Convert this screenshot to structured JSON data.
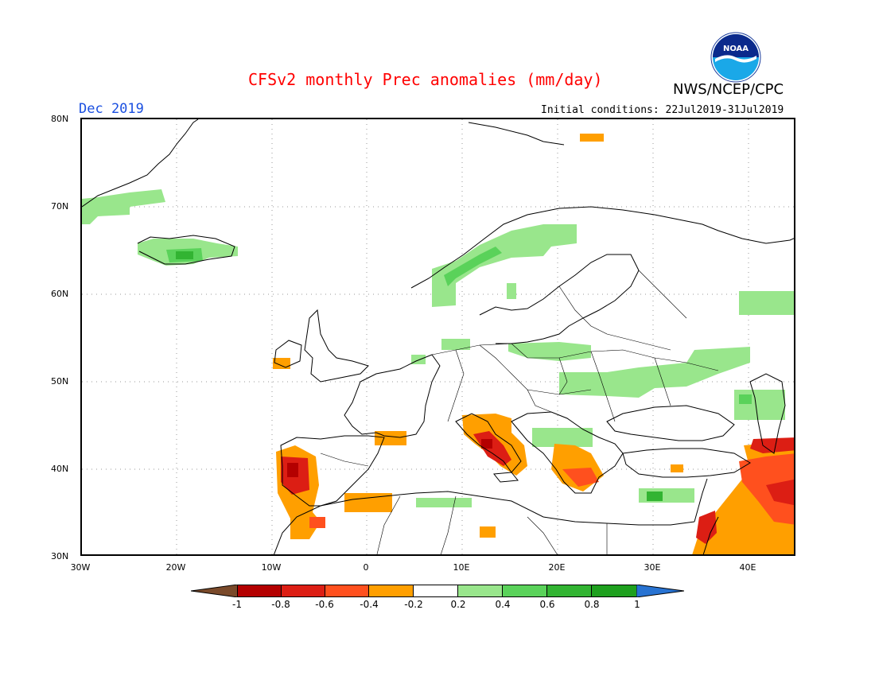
{
  "header": {
    "title": "CFSv2 monthly Prec anomalies (mm/day)",
    "agency": "NWS/NCEP/CPC",
    "month": "Dec 2019",
    "initial_conditions": "Initial conditions: 22Jul2019-31Jul2019",
    "logo_text": "NOAA"
  },
  "map": {
    "lat_labels": [
      "80N",
      "70N",
      "60N",
      "50N",
      "40N",
      "30N"
    ],
    "lon_labels": [
      "30W",
      "20W",
      "10W",
      "0",
      "10E",
      "20E",
      "30E",
      "40E"
    ]
  },
  "colorbar": {
    "labels": [
      "-1",
      "-0.8",
      "-0.6",
      "-0.4",
      "-0.2",
      "0.2",
      "0.4",
      "0.6",
      "0.8",
      "1"
    ],
    "colors": {
      "below_min": "#7a4a2a",
      "neg_1": "#b40000",
      "neg_08": "#dc1e14",
      "neg_06": "#ff501e",
      "neg_04": "#ff9f00",
      "neutral": "#ffffff",
      "pos_02": "#99e68c",
      "pos_04": "#5ad25a",
      "pos_06": "#32b432",
      "pos_08": "#1ea01e",
      "above_max": "#2873d2"
    }
  }
}
